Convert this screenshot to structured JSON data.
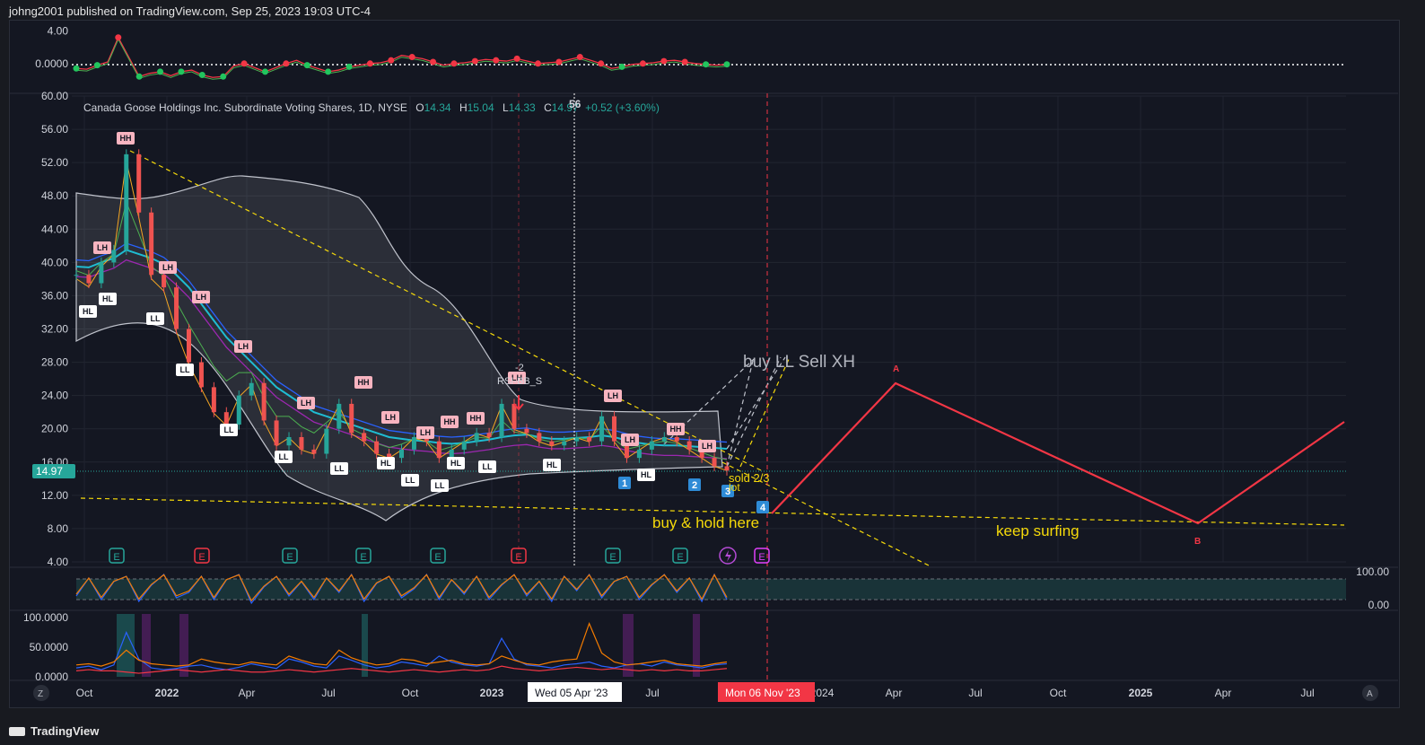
{
  "header": {
    "published": "johng2001 published on TradingView.com, Sep 25, 2023 19:03 UTC-4"
  },
  "legend": {
    "symbol": "Canada Goose Holdings Inc. Subordinate Voting Shares, 1D, NYSE",
    "o_label": "O",
    "o_value": "14.34",
    "h_label": "H",
    "h_value": "15.04",
    "l_label": "L",
    "l_value": "14.33",
    "c_label": "C",
    "c_value": "14.97",
    "change": "+0.52 (+3.60%)",
    "indicator_value": "56"
  },
  "footer": {
    "brand": "TradingView"
  },
  "colors": {
    "background": "#141722",
    "red": "#f23645",
    "teal": "#26a69a",
    "yellow": "#f5d90a",
    "blue": "#2962ff"
  },
  "chart_data": [
    {
      "type": "line",
      "title": "",
      "yticks": [
        "4.00",
        "0.0000"
      ],
      "ylim": [
        -3,
        4.5
      ],
      "series": [
        {
          "values": [
            -0.6,
            -0.7,
            -0.2,
            0.2,
            3.2,
            0.8,
            -1.6,
            -1.2,
            -1.0,
            -1.5,
            -1.0,
            -0.8,
            -1.4,
            -1.7,
            -1.6,
            -0.3,
            0.0,
            -0.5,
            -1.0,
            -0.5,
            0.0,
            0.4,
            -0.2,
            -0.6,
            -1.0,
            -0.8,
            -0.4,
            -0.2,
            0.0,
            0.1,
            0.4,
            1.0,
            0.8,
            0.6,
            0.2,
            -0.2,
            0.0,
            0.1,
            0.3,
            0.5,
            0.4,
            0.3,
            0.6,
            0.3,
            0.0,
            0.1,
            0.2,
            0.5,
            0.8,
            0.4,
            0.0,
            -0.6,
            -0.4,
            -0.1,
            0.0,
            0.1,
            0.3,
            0.4,
            0.2,
            0.0,
            -0.1,
            -0.2,
            -0.1
          ]
        }
      ]
    },
    {
      "type": "line",
      "title": "",
      "yticks": [
        "60.00",
        "56.00",
        "52.00",
        "48.00",
        "44.00",
        "40.00",
        "36.00",
        "32.00",
        "28.00",
        "24.00",
        "20.00",
        "16.00",
        "12.00",
        "8.00",
        "4.00"
      ],
      "ylim": [
        4,
        60
      ],
      "xticks": [
        "Oct",
        "2022",
        "Apr",
        "Jul",
        "Oct",
        "2023",
        "Apr",
        "Jul",
        "Oct",
        "2024",
        "Apr",
        "Jul",
        "Oct",
        "2025",
        "Apr",
        "Jul"
      ],
      "series": [
        {
          "values": [
            38.5,
            37.5,
            40.0,
            41.5,
            53.0,
            46.0,
            38.5,
            37.0,
            32.0,
            28.0,
            25.0,
            22.0,
            20.5,
            24.0,
            25.5,
            21.0,
            18.0,
            19.0,
            17.5,
            17.0,
            20.0,
            23.0,
            19.5,
            18.5,
            17.0,
            16.5,
            17.5,
            19.0,
            18.5,
            16.5,
            17.5,
            18.5,
            19.5,
            19.0,
            23.0,
            20.0,
            19.5,
            18.5,
            18.0,
            18.5,
            19.0,
            18.5,
            21.5,
            18.5,
            16.5,
            17.5,
            18.5,
            19.0,
            18.5,
            17.5,
            16.5,
            15.5,
            14.97
          ]
        },
        {
          "values": [
            39.5,
            39.4,
            40.0,
            40.5,
            41.5,
            41.0,
            40.5,
            39.8,
            38.5,
            37.0,
            35.0,
            33.0,
            31.0,
            29.5,
            28.0,
            26.5,
            25.0,
            24.0,
            23.0,
            22.0,
            21.5,
            21.0,
            20.5,
            20.0,
            19.5,
            19.0,
            18.8,
            18.6,
            18.5,
            18.3,
            18.2,
            18.3,
            18.5,
            18.7,
            19.0,
            19.2,
            19.3,
            19.0,
            18.8,
            18.8,
            18.9,
            19.0,
            19.2,
            19.0,
            18.6,
            18.3,
            18.1,
            18.0,
            18.0,
            17.9,
            17.8,
            17.7,
            17.6
          ]
        }
      ],
      "annotations": [
        "HH",
        "LH",
        "HL",
        "LL",
        "LL",
        "LH",
        "LL",
        "LH",
        "LL",
        "LL",
        "HH",
        "LL",
        "LH",
        "HL",
        "LL",
        "LH",
        "LL",
        "HH",
        "HL",
        "HH",
        "LL",
        "LH",
        "HL",
        "LH",
        "HH",
        "HL",
        "LH",
        "LH",
        "HH",
        "HL",
        "LH",
        "RSI-BB_S",
        "-2",
        "buy LL Sell XH",
        "sold 2/3",
        "lot",
        "buy & hold here",
        "keep surfing",
        "A",
        "B",
        "1",
        "2",
        "3",
        "4",
        "E"
      ],
      "current_price": "14.97",
      "crosshair_labels": [
        "Wed 05 Apr '23",
        "Mon 06 Nov '23"
      ]
    },
    {
      "type": "line",
      "title": "",
      "yticks": [
        "100.00",
        "0.00"
      ],
      "ylim": [
        0,
        100
      ],
      "series": [
        {
          "values": [
            30,
            80,
            20,
            70,
            85,
            15,
            60,
            90,
            25,
            40,
            85,
            20,
            75,
            90,
            10,
            55,
            85,
            30,
            70,
            20,
            80,
            40,
            90,
            15,
            65,
            85,
            25,
            50,
            90,
            20,
            75,
            35,
            85,
            20,
            60,
            90,
            30,
            70,
            15,
            85,
            45,
            90,
            25,
            70,
            85,
            20,
            60,
            90,
            40,
            80,
            15,
            90,
            20
          ]
        }
      ]
    },
    {
      "type": "line",
      "title": "",
      "yticks": [
        "100.0000",
        "50.0000",
        "0.0000"
      ],
      "ylim": [
        0,
        100
      ],
      "series": [
        {
          "values": [
            15,
            18,
            12,
            20,
            75,
            30,
            15,
            12,
            14,
            18,
            20,
            15,
            12,
            16,
            22,
            18,
            14,
            30,
            25,
            18,
            15,
            35,
            28,
            20,
            15,
            18,
            25,
            22,
            18,
            35,
            25,
            20,
            18,
            22,
            65,
            30,
            20,
            18,
            15,
            20,
            22,
            25,
            18,
            15,
            20,
            22,
            18,
            25,
            20,
            18,
            15,
            20,
            22
          ]
        },
        {
          "values": [
            20,
            22,
            18,
            25,
            45,
            28,
            22,
            20,
            18,
            20,
            30,
            25,
            22,
            20,
            25,
            22,
            20,
            35,
            28,
            22,
            20,
            45,
            32,
            25,
            20,
            22,
            30,
            28,
            22,
            25,
            28,
            22,
            20,
            22,
            35,
            28,
            22,
            20,
            25,
            28,
            30,
            90,
            40,
            25,
            20,
            22,
            25,
            28,
            22,
            20,
            18,
            22,
            25
          ]
        },
        {
          "values": [
            10,
            12,
            10,
            10,
            8,
            6,
            8,
            10,
            12,
            10,
            8,
            10,
            12,
            10,
            8,
            8,
            10,
            12,
            10,
            8,
            10,
            12,
            14,
            12,
            10,
            8,
            10,
            12,
            10,
            8,
            10,
            12,
            10,
            12,
            18,
            14,
            12,
            10,
            12,
            14,
            16,
            14,
            12,
            14,
            12,
            10,
            12,
            10,
            12,
            10,
            10,
            12,
            14
          ]
        }
      ]
    }
  ]
}
